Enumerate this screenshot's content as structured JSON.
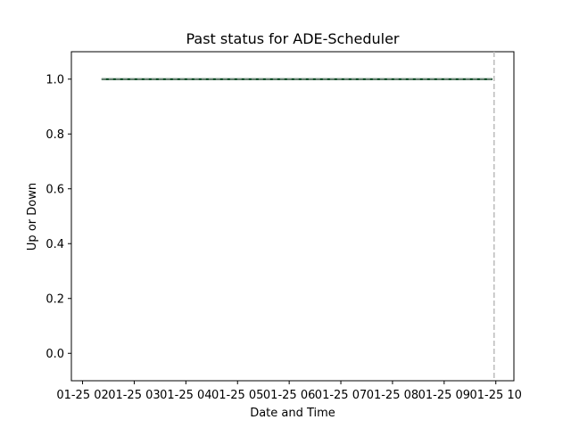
{
  "chart_data": {
    "type": "line",
    "title": "Past status for ADE-Scheduler",
    "xlabel": "Date and Time",
    "ylabel": "Up or Down",
    "x_axis": {
      "kind": "time",
      "ticks": [
        "01-25 02",
        "01-25 03",
        "01-25 04",
        "01-25 05",
        "01-25 06",
        "01-25 07",
        "01-25 08",
        "01-25 09",
        "01-25 10"
      ],
      "range": [
        "01-25 01:47",
        "01-25 10:21"
      ]
    },
    "y_axis": {
      "ticks": [
        "0.0",
        "0.2",
        "0.4",
        "0.6",
        "0.8",
        "1.0"
      ],
      "range": [
        -0.1,
        1.1
      ]
    },
    "series": [
      {
        "color": "#00441b",
        "style": "solid",
        "points": [
          {
            "x": "01-25 02:22",
            "y": 1.0
          },
          {
            "x": "01-25 09:56",
            "y": 1.0
          }
        ]
      },
      {
        "color": "#999999",
        "style": "dashed",
        "points": [
          {
            "x": "01-25 02:22",
            "y": 1.0
          },
          {
            "x": "01-25 09:56",
            "y": 1.0
          }
        ]
      }
    ],
    "reference_lines": [
      {
        "orientation": "vertical",
        "x": "01-25 09:58",
        "color": "#bbbbbb",
        "style": "dashed"
      }
    ],
    "grid": false,
    "legend": "none"
  }
}
